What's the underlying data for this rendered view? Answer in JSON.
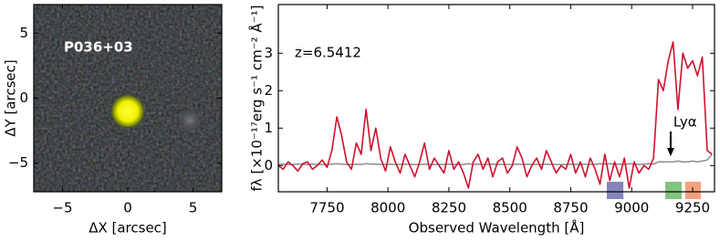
{
  "chart_data": [
    {
      "type": "image",
      "title": "P036+03",
      "xlabel": "ΔX [arcsec]",
      "ylabel": "ΔY [arcsec]",
      "xlim": [
        -7.2,
        7.2
      ],
      "ylim": [
        -7.2,
        7.2
      ],
      "xticks": [
        {
          "value": -5,
          "label": "−5"
        },
        0,
        5
      ],
      "yticks": [
        {
          "value": -5,
          "label": "−5"
        },
        0,
        5
      ]
    },
    {
      "type": "line",
      "xlabel": "Observed Wavelength [Å]",
      "ylabel": "fλ [×10⁻¹⁷erg s⁻¹ cm⁻² Å⁻¹]",
      "annotations": [
        {
          "text": "z=6.5412"
        },
        {
          "text": "Lyα",
          "x": 9160
        }
      ],
      "xlim": [
        7550,
        9340
      ],
      "ylim": [
        -0.7,
        4.3
      ],
      "xticks": [
        7750,
        8000,
        8250,
        8500,
        8750,
        9000,
        9250
      ],
      "yticks": [
        0,
        1,
        2,
        3
      ],
      "x": [
        7550,
        7570,
        7590,
        7610,
        7630,
        7650,
        7670,
        7690,
        7710,
        7730,
        7750,
        7770,
        7790,
        7810,
        7830,
        7850,
        7870,
        7890,
        7910,
        7930,
        7950,
        7970,
        7990,
        8010,
        8030,
        8050,
        8070,
        8090,
        8110,
        8130,
        8150,
        8170,
        8190,
        8210,
        8230,
        8250,
        8270,
        8290,
        8310,
        8330,
        8350,
        8370,
        8390,
        8410,
        8430,
        8450,
        8470,
        8490,
        8510,
        8530,
        8550,
        8570,
        8590,
        8610,
        8630,
        8650,
        8670,
        8690,
        8710,
        8730,
        8750,
        8770,
        8790,
        8810,
        8830,
        8850,
        8870,
        8890,
        8910,
        8930,
        8950,
        8970,
        8990,
        9010,
        9030,
        9050,
        9070,
        9090,
        9110,
        9130,
        9150,
        9170,
        9190,
        9210,
        9230,
        9250,
        9270,
        9290,
        9310,
        9330
      ],
      "series": [
        {
          "color": "#d0102e",
          "values": [
            0.0,
            -0.1,
            0.1,
            0.0,
            -0.15,
            0.05,
            0.1,
            -0.1,
            0.0,
            0.15,
            -0.05,
            0.4,
            1.3,
            0.8,
            0.1,
            -0.1,
            0.6,
            0.3,
            1.5,
            0.4,
            1.0,
            0.2,
            -0.15,
            0.5,
            0.1,
            -0.2,
            0.3,
            0.0,
            -0.3,
            0.1,
            0.6,
            -0.1,
            0.2,
            0.0,
            -0.2,
            0.4,
            -0.1,
            0.1,
            -0.2,
            -0.6,
            0.1,
            0.3,
            -0.1,
            0.2,
            -0.3,
            0.1,
            0.2,
            -0.2,
            0.0,
            0.5,
            0.2,
            -0.3,
            0.0,
            0.2,
            -0.1,
            0.4,
            0.1,
            -0.2,
            0.0,
            -0.1,
            0.3,
            -0.2,
            0.1,
            -0.3,
            0.2,
            -0.1,
            -0.5,
            0.3,
            -0.4,
            0.1,
            -0.3,
            0.2,
            -0.6,
            0.1,
            -0.2,
            0.0,
            -0.1,
            0.2,
            2.3,
            2.0,
            2.8,
            3.3,
            1.5,
            3.0,
            2.6,
            2.8,
            2.4,
            2.9,
            0.4,
            0.3
          ]
        },
        {
          "color": "#8c8c8c",
          "values": [
            0.03,
            0.04,
            0.03,
            0.03,
            0.04,
            0.03,
            0.03,
            0.04,
            0.03,
            0.03,
            0.03,
            0.04,
            0.05,
            0.04,
            0.03,
            0.03,
            0.04,
            0.03,
            0.05,
            0.04,
            0.04,
            0.03,
            0.03,
            0.04,
            0.03,
            0.03,
            0.04,
            0.03,
            0.03,
            0.03,
            0.04,
            0.03,
            0.03,
            0.03,
            0.03,
            0.04,
            0.03,
            0.03,
            0.03,
            0.05,
            0.03,
            0.04,
            0.03,
            0.03,
            0.04,
            0.03,
            0.03,
            0.03,
            0.03,
            0.04,
            0.03,
            0.04,
            0.03,
            0.03,
            0.03,
            0.04,
            0.03,
            0.03,
            0.03,
            0.03,
            0.04,
            0.03,
            0.03,
            0.04,
            0.03,
            0.03,
            0.05,
            0.04,
            0.05,
            0.04,
            0.04,
            0.03,
            0.05,
            0.04,
            0.03,
            0.04,
            0.05,
            0.04,
            0.1,
            0.1,
            0.1,
            0.1,
            0.12,
            0.1,
            0.1,
            0.12,
            0.1,
            0.12,
            0.15,
            0.3
          ]
        }
      ],
      "bands": [
        {
          "range": [
            8898,
            8966
          ],
          "color": "#8585bd"
        },
        {
          "range": [
            9138,
            9205
          ],
          "color": "#7fc47f"
        },
        {
          "range": [
            9220,
            9284
          ],
          "color": "#f7a07c"
        }
      ]
    }
  ]
}
